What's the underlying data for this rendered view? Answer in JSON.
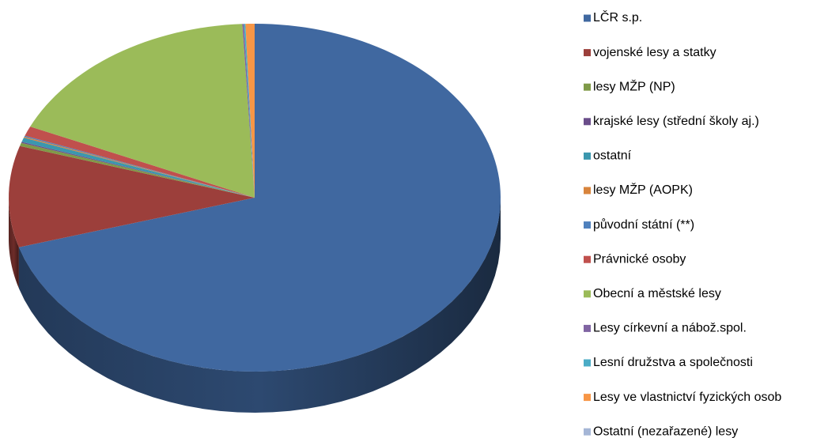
{
  "chart_data": {
    "type": "pie",
    "categories": [
      "LČR s.p.",
      "vojenské lesy a statky",
      "lesy MŽP (NP)",
      "krajské lesy (střední školy aj.)",
      "ostatní",
      "lesy MŽP (AOPK)",
      "původní státní (**)",
      "Právnické osoby",
      "Obecní a městské lesy",
      "Lesy církevní a nábož.spol.",
      "Lesní družstva a společnosti",
      "Lesy ve vlastnictví fyzických osob",
      "Ostatní (nezařazené) lesy"
    ],
    "values": [
      70.4,
      9.4,
      0.3,
      0.1,
      0.4,
      0.1,
      0.1,
      0.9,
      17.5,
      0.1,
      0.1,
      0.6,
      0.0
    ],
    "colors": [
      "#4068a0",
      "#9c3f3b",
      "#7f9a48",
      "#6a4d8a",
      "#3b97ae",
      "#d8843c",
      "#4f81bd",
      "#c0504d",
      "#9bbb59",
      "#8064a2",
      "#4bacc6",
      "#f79646",
      "#a5b6d6"
    ]
  }
}
